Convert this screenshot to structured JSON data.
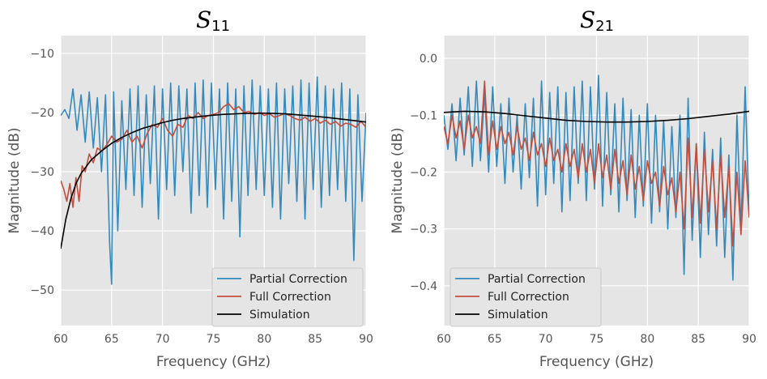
{
  "chart_data": [
    {
      "type": "line",
      "title": "S11",
      "title_main": "S",
      "title_sub": "11",
      "xlabel": "Frequency (GHz)",
      "ylabel": "Magnitude (dB)",
      "xlim": [
        60,
        90
      ],
      "ylim": [
        -56,
        -7
      ],
      "xticks": [
        60,
        65,
        70,
        75,
        80,
        85,
        90
      ],
      "xtick_labels": [
        "60",
        "65",
        "70",
        "75",
        "80",
        "85",
        "90"
      ],
      "yticks": [
        -50,
        -40,
        -30,
        -20,
        -10
      ],
      "ytick_labels": [
        "−50",
        "−40",
        "−30",
        "−20",
        "−10"
      ],
      "grid": true,
      "legend_position": "lower-right",
      "series": [
        {
          "name": "Partial Correction",
          "color": "#348ABD",
          "x": [
            60.0,
            60.4,
            60.8,
            61.2,
            61.6,
            62.0,
            62.4,
            62.8,
            63.2,
            63.6,
            64.0,
            64.4,
            64.8,
            65.0,
            65.2,
            65.6,
            66.0,
            66.4,
            66.8,
            67.2,
            67.6,
            68.0,
            68.4,
            68.8,
            69.2,
            69.6,
            70.0,
            70.4,
            70.8,
            71.2,
            71.6,
            72.0,
            72.4,
            72.8,
            73.2,
            73.6,
            74.0,
            74.4,
            74.8,
            75.2,
            75.6,
            76.0,
            76.4,
            76.8,
            77.2,
            77.6,
            78.0,
            78.4,
            78.8,
            79.2,
            79.6,
            80.0,
            80.4,
            80.8,
            81.2,
            81.6,
            82.0,
            82.4,
            82.8,
            83.2,
            83.6,
            84.0,
            84.4,
            84.8,
            85.2,
            85.6,
            86.0,
            86.4,
            86.8,
            87.2,
            87.6,
            88.0,
            88.4,
            88.8,
            89.2,
            89.6,
            90.0
          ],
          "y": [
            -20.5,
            -19.5,
            -21,
            -16,
            -23,
            -17,
            -25,
            -16.5,
            -26,
            -17.5,
            -30,
            -17,
            -42,
            -49,
            -16.5,
            -40,
            -18,
            -33,
            -16,
            -34,
            -15.5,
            -36,
            -17,
            -32,
            -15.5,
            -38,
            -16,
            -33,
            -15,
            -34,
            -15.5,
            -30,
            -16,
            -37,
            -15,
            -34,
            -14.5,
            -36,
            -15,
            -33,
            -16,
            -38,
            -15,
            -35,
            -16,
            -41,
            -15.5,
            -34,
            -14.5,
            -33,
            -15.5,
            -34,
            -16,
            -36,
            -15,
            -38,
            -16,
            -32,
            -15.5,
            -35,
            -14.5,
            -38,
            -15,
            -33,
            -14,
            -36,
            -15.5,
            -34,
            -16,
            -33,
            -15,
            -35,
            -16,
            -45,
            -17,
            -35,
            -20
          ]
        },
        {
          "name": "Full Correction",
          "color": "#C44E3B",
          "x": [
            60.0,
            60.3,
            60.6,
            60.9,
            61.2,
            61.5,
            61.8,
            62.1,
            62.4,
            62.8,
            63.2,
            63.6,
            64.0,
            64.5,
            65.0,
            65.5,
            66.0,
            66.5,
            67.0,
            67.5,
            68.0,
            68.5,
            69.0,
            69.5,
            70.0,
            70.5,
            71.0,
            71.5,
            72.0,
            72.5,
            73.0,
            73.5,
            74.0,
            74.5,
            75.0,
            75.5,
            76.0,
            76.5,
            77.0,
            77.5,
            78.0,
            78.5,
            79.0,
            79.5,
            80.0,
            80.5,
            81.0,
            81.5,
            82.0,
            82.5,
            83.0,
            83.5,
            84.0,
            84.5,
            85.0,
            85.5,
            86.0,
            86.5,
            87.0,
            87.5,
            88.0,
            88.5,
            89.0,
            89.5,
            90.0
          ],
          "y": [
            -31.5,
            -33,
            -35,
            -32,
            -36,
            -31,
            -35,
            -29,
            -30,
            -27,
            -28.5,
            -26,
            -26.5,
            -25.5,
            -24,
            -25,
            -24.5,
            -23,
            -25,
            -24,
            -26,
            -23.5,
            -22,
            -22.5,
            -21,
            -23,
            -24,
            -22,
            -22.5,
            -20.5,
            -21,
            -20,
            -21,
            -20.5,
            -20.3,
            -20,
            -19,
            -18.5,
            -19.5,
            -19,
            -20,
            -19.8,
            -20.3,
            -20,
            -20.5,
            -20.2,
            -20.8,
            -20.5,
            -20.2,
            -20.5,
            -21,
            -21.3,
            -20.8,
            -21.5,
            -21,
            -21.8,
            -21.3,
            -22,
            -21.5,
            -22.3,
            -21.8,
            -22,
            -22.5,
            -21.5,
            -22.5
          ]
        },
        {
          "name": "Simulation",
          "color": "#000000",
          "x": [
            60.0,
            60.5,
            61.0,
            61.5,
            62.0,
            63.0,
            64.0,
            65.0,
            66.0,
            67.0,
            68.0,
            69.0,
            70.0,
            71.0,
            72.0,
            74.0,
            76.0,
            78.0,
            80.0,
            82.0,
            84.0,
            86.0,
            88.0,
            90.0
          ],
          "y": [
            -43,
            -38,
            -34.5,
            -32,
            -30.3,
            -28,
            -26.5,
            -25.2,
            -24.2,
            -23.4,
            -22.7,
            -22.2,
            -21.7,
            -21.3,
            -21.0,
            -20.6,
            -20.3,
            -20.15,
            -20.1,
            -20.2,
            -20.5,
            -20.8,
            -21.2,
            -21.6
          ]
        }
      ]
    },
    {
      "type": "line",
      "title": "S21",
      "title_main": "S",
      "title_sub": "21",
      "xlabel": "Frequency (GHz)",
      "ylabel": "Magnitude (dB)",
      "xlim": [
        60,
        90
      ],
      "ylim": [
        -0.47,
        0.04
      ],
      "xticks": [
        60,
        65,
        70,
        75,
        80,
        85,
        90
      ],
      "xtick_labels": [
        "60",
        "65",
        "70",
        "75",
        "80",
        "85",
        "90"
      ],
      "yticks": [
        -0.4,
        -0.3,
        -0.2,
        -0.1,
        0.0
      ],
      "ytick_labels": [
        "−0.4",
        "−0.3",
        "−0.2",
        "−0.1",
        "0.0"
      ],
      "grid": true,
      "legend_position": "lower-left",
      "series": [
        {
          "name": "Partial Correction",
          "color": "#348ABD",
          "x": [
            60.0,
            60.4,
            60.8,
            61.2,
            61.6,
            62.0,
            62.4,
            62.8,
            63.2,
            63.6,
            64.0,
            64.4,
            64.8,
            65.2,
            65.6,
            66.0,
            66.4,
            66.8,
            67.2,
            67.6,
            68.0,
            68.4,
            68.8,
            69.2,
            69.6,
            70.0,
            70.4,
            70.8,
            71.2,
            71.6,
            72.0,
            72.4,
            72.8,
            73.2,
            73.6,
            74.0,
            74.4,
            74.8,
            75.2,
            75.6,
            76.0,
            76.4,
            76.8,
            77.2,
            77.6,
            78.0,
            78.4,
            78.8,
            79.2,
            79.6,
            80.0,
            80.4,
            80.8,
            81.2,
            81.6,
            82.0,
            82.4,
            82.8,
            83.2,
            83.6,
            84.0,
            84.4,
            84.8,
            85.2,
            85.6,
            86.0,
            86.4,
            86.8,
            87.2,
            87.6,
            88.0,
            88.4,
            88.8,
            89.2,
            89.6,
            90.0
          ],
          "y": [
            -0.1,
            -0.16,
            -0.08,
            -0.18,
            -0.07,
            -0.17,
            -0.05,
            -0.19,
            -0.04,
            -0.18,
            -0.06,
            -0.2,
            -0.05,
            -0.19,
            -0.08,
            -0.22,
            -0.07,
            -0.2,
            -0.1,
            -0.23,
            -0.08,
            -0.21,
            -0.07,
            -0.26,
            -0.04,
            -0.24,
            -0.06,
            -0.22,
            -0.05,
            -0.27,
            -0.06,
            -0.25,
            -0.05,
            -0.22,
            -0.04,
            -0.25,
            -0.05,
            -0.23,
            -0.03,
            -0.26,
            -0.06,
            -0.24,
            -0.08,
            -0.27,
            -0.07,
            -0.25,
            -0.09,
            -0.28,
            -0.1,
            -0.26,
            -0.08,
            -0.29,
            -0.1,
            -0.27,
            -0.11,
            -0.3,
            -0.12,
            -0.28,
            -0.1,
            -0.38,
            -0.07,
            -0.32,
            -0.15,
            -0.35,
            -0.13,
            -0.31,
            -0.16,
            -0.33,
            -0.14,
            -0.35,
            -0.17,
            -0.39,
            -0.1,
            -0.3,
            -0.05,
            -0.28
          ]
        },
        {
          "name": "Full Correction",
          "color": "#C44E3B",
          "x": [
            60.0,
            60.4,
            60.8,
            61.2,
            61.6,
            62.0,
            62.4,
            62.8,
            63.2,
            63.6,
            64.0,
            64.4,
            64.8,
            65.2,
            65.6,
            66.0,
            66.4,
            66.8,
            67.2,
            67.6,
            68.0,
            68.4,
            68.8,
            69.2,
            69.6,
            70.0,
            70.4,
            70.8,
            71.2,
            71.6,
            72.0,
            72.4,
            72.8,
            73.2,
            73.6,
            74.0,
            74.4,
            74.8,
            75.2,
            75.6,
            76.0,
            76.4,
            76.8,
            77.2,
            77.6,
            78.0,
            78.4,
            78.8,
            79.2,
            79.6,
            80.0,
            80.4,
            80.8,
            81.2,
            81.6,
            82.0,
            82.4,
            82.8,
            83.2,
            83.6,
            84.0,
            84.4,
            84.8,
            85.2,
            85.6,
            86.0,
            86.4,
            86.8,
            87.2,
            87.6,
            88.0,
            88.4,
            88.8,
            89.2,
            89.6,
            90.0
          ],
          "y": [
            -0.12,
            -0.15,
            -0.1,
            -0.14,
            -0.11,
            -0.16,
            -0.1,
            -0.14,
            -0.12,
            -0.15,
            -0.04,
            -0.17,
            -0.11,
            -0.16,
            -0.12,
            -0.15,
            -0.13,
            -0.17,
            -0.12,
            -0.16,
            -0.14,
            -0.18,
            -0.13,
            -0.17,
            -0.15,
            -0.19,
            -0.14,
            -0.18,
            -0.16,
            -0.2,
            -0.15,
            -0.19,
            -0.16,
            -0.21,
            -0.15,
            -0.2,
            -0.16,
            -0.22,
            -0.15,
            -0.21,
            -0.17,
            -0.23,
            -0.16,
            -0.22,
            -0.18,
            -0.24,
            -0.17,
            -0.23,
            -0.19,
            -0.25,
            -0.18,
            -0.22,
            -0.2,
            -0.26,
            -0.19,
            -0.24,
            -0.21,
            -0.27,
            -0.2,
            -0.3,
            -0.14,
            -0.28,
            -0.15,
            -0.29,
            -0.16,
            -0.27,
            -0.18,
            -0.3,
            -0.17,
            -0.28,
            -0.19,
            -0.33,
            -0.2,
            -0.31,
            -0.18,
            -0.28
          ]
        },
        {
          "name": "Simulation",
          "color": "#000000",
          "x": [
            60.0,
            62.0,
            64.0,
            66.0,
            68.0,
            70.0,
            72.0,
            74.0,
            76.0,
            78.0,
            80.0,
            82.0,
            84.0,
            86.0,
            88.0,
            90.0
          ],
          "y": [
            -0.095,
            -0.093,
            -0.094,
            -0.097,
            -0.101,
            -0.105,
            -0.109,
            -0.111,
            -0.112,
            -0.112,
            -0.111,
            -0.109,
            -0.106,
            -0.102,
            -0.098,
            -0.093
          ]
        }
      ]
    }
  ]
}
